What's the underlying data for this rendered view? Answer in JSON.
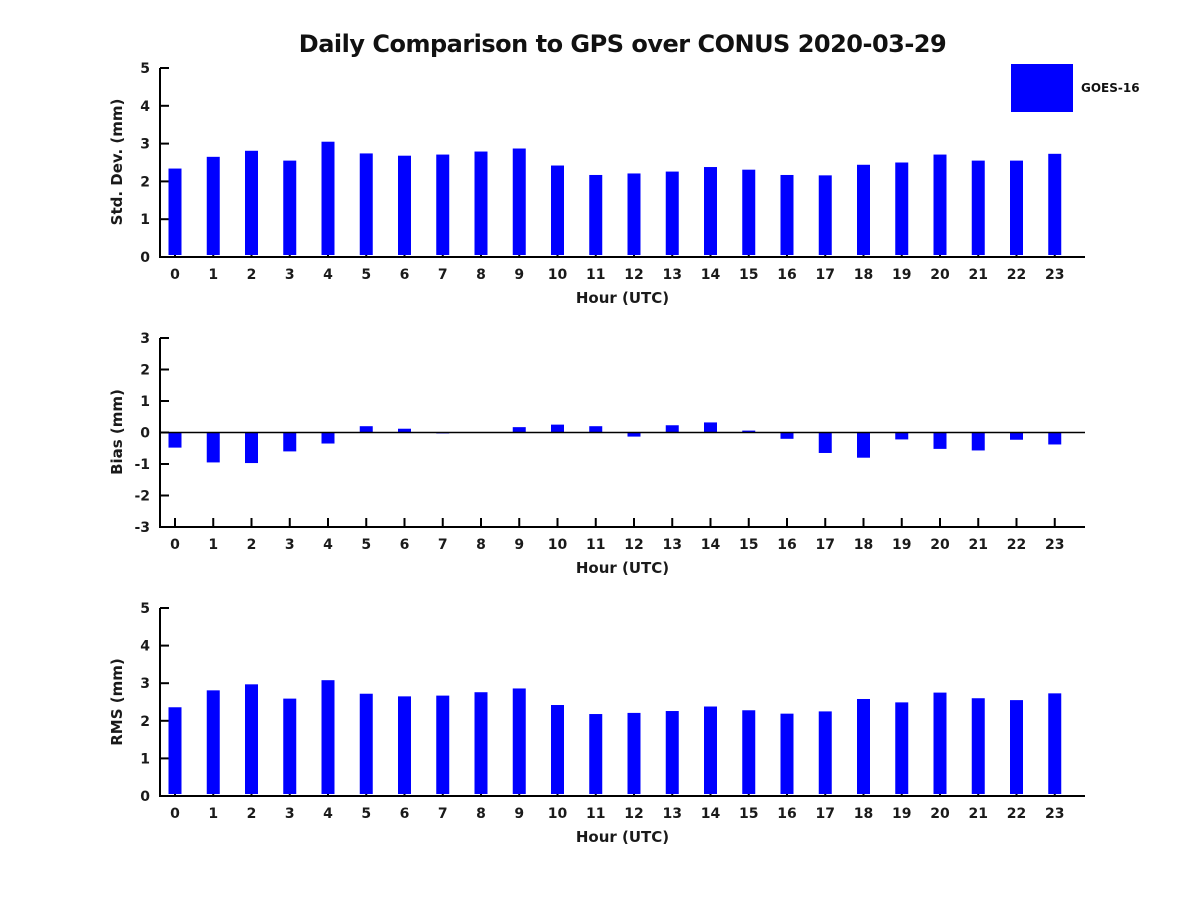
{
  "title": "Daily Comparison to GPS over CONUS 2020-03-29",
  "legend": {
    "label": "GOES-16",
    "color": "#0000ff",
    "position": "top-right-outside"
  },
  "colors": {
    "bar": "#0000ff",
    "axis": "#000000",
    "text": "#1a1a1a",
    "background": "#ffffff"
  },
  "chart_data": [
    {
      "type": "bar",
      "series_name": "GOES-16",
      "ylabel": "Std. Dev. (mm)",
      "xlabel": "Hour (UTC)",
      "categories": [
        "0",
        "1",
        "2",
        "3",
        "4",
        "5",
        "6",
        "7",
        "8",
        "9",
        "10",
        "11",
        "12",
        "13",
        "14",
        "15",
        "16",
        "17",
        "18",
        "19",
        "20",
        "21",
        "22",
        "23"
      ],
      "values": [
        2.34,
        2.65,
        2.81,
        2.55,
        3.05,
        2.74,
        2.68,
        2.71,
        2.79,
        2.87,
        2.42,
        2.17,
        2.21,
        2.26,
        2.38,
        2.31,
        2.17,
        2.16,
        2.44,
        2.5,
        2.71,
        2.55,
        2.55,
        2.73
      ],
      "ylim": [
        0,
        5
      ],
      "yticks": [
        0,
        1,
        2,
        3,
        4,
        5
      ],
      "grid": false
    },
    {
      "type": "bar",
      "series_name": "GOES-16",
      "ylabel": "Bias (mm)",
      "xlabel": "Hour (UTC)",
      "categories": [
        "0",
        "1",
        "2",
        "3",
        "4",
        "5",
        "6",
        "7",
        "8",
        "9",
        "10",
        "11",
        "12",
        "13",
        "14",
        "15",
        "16",
        "17",
        "18",
        "19",
        "20",
        "21",
        "22",
        "23"
      ],
      "values": [
        -0.48,
        -0.95,
        -0.97,
        -0.6,
        -0.35,
        0.2,
        0.12,
        -0.03,
        0.0,
        0.17,
        0.25,
        0.2,
        -0.13,
        0.23,
        0.32,
        0.06,
        -0.2,
        -0.65,
        -0.8,
        -0.22,
        -0.52,
        -0.57,
        -0.23,
        -0.38
      ],
      "ylim": [
        -3,
        3
      ],
      "yticks": [
        -3,
        -2,
        -1,
        0,
        1,
        2,
        3
      ],
      "grid": false
    },
    {
      "type": "bar",
      "series_name": "GOES-16",
      "ylabel": "RMS (mm)",
      "xlabel": "Hour (UTC)",
      "categories": [
        "0",
        "1",
        "2",
        "3",
        "4",
        "5",
        "6",
        "7",
        "8",
        "9",
        "10",
        "11",
        "12",
        "13",
        "14",
        "15",
        "16",
        "17",
        "18",
        "19",
        "20",
        "21",
        "22",
        "23"
      ],
      "values": [
        2.36,
        2.81,
        2.97,
        2.59,
        3.08,
        2.72,
        2.65,
        2.67,
        2.76,
        2.86,
        2.42,
        2.18,
        2.21,
        2.26,
        2.38,
        2.28,
        2.19,
        2.25,
        2.58,
        2.49,
        2.75,
        2.6,
        2.55,
        2.73
      ],
      "ylim": [
        0,
        5
      ],
      "yticks": [
        0,
        1,
        2,
        3,
        4,
        5
      ],
      "grid": false
    }
  ]
}
